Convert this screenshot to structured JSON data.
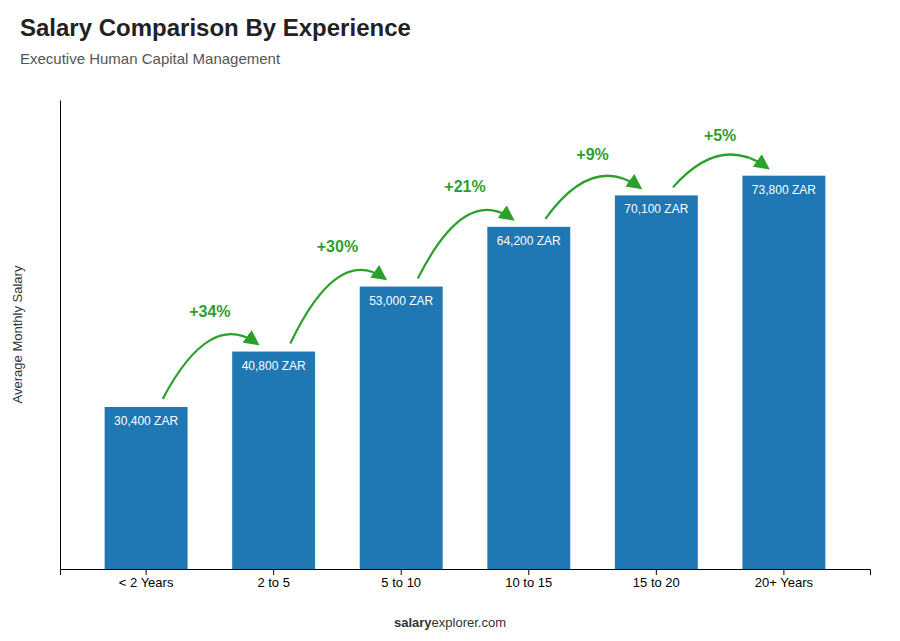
{
  "chart_data": {
    "type": "bar",
    "title": "Salary Comparison By Experience",
    "subtitle": "Executive Human Capital Management",
    "ylabel": "Average Monthly Salary",
    "categories": [
      "< 2 Years",
      "2 to 5",
      "5 to 10",
      "10 to 15",
      "15 to 20",
      "20+ Years"
    ],
    "values": [
      30400,
      40800,
      53000,
      64200,
      70100,
      73800
    ],
    "value_labels": [
      "30,400 ZAR",
      "40,800 ZAR",
      "53,000 ZAR",
      "64,200 ZAR",
      "70,100 ZAR",
      "73,800 ZAR"
    ],
    "data_labels": true,
    "annotations": [
      "+34%",
      "+30%",
      "+21%",
      "+9%",
      "+5%"
    ],
    "footer": [
      "salary",
      "explorer.com"
    ],
    "ylim": [
      0,
      88000
    ],
    "yticks": [],
    "tick_labels": "x"
  }
}
